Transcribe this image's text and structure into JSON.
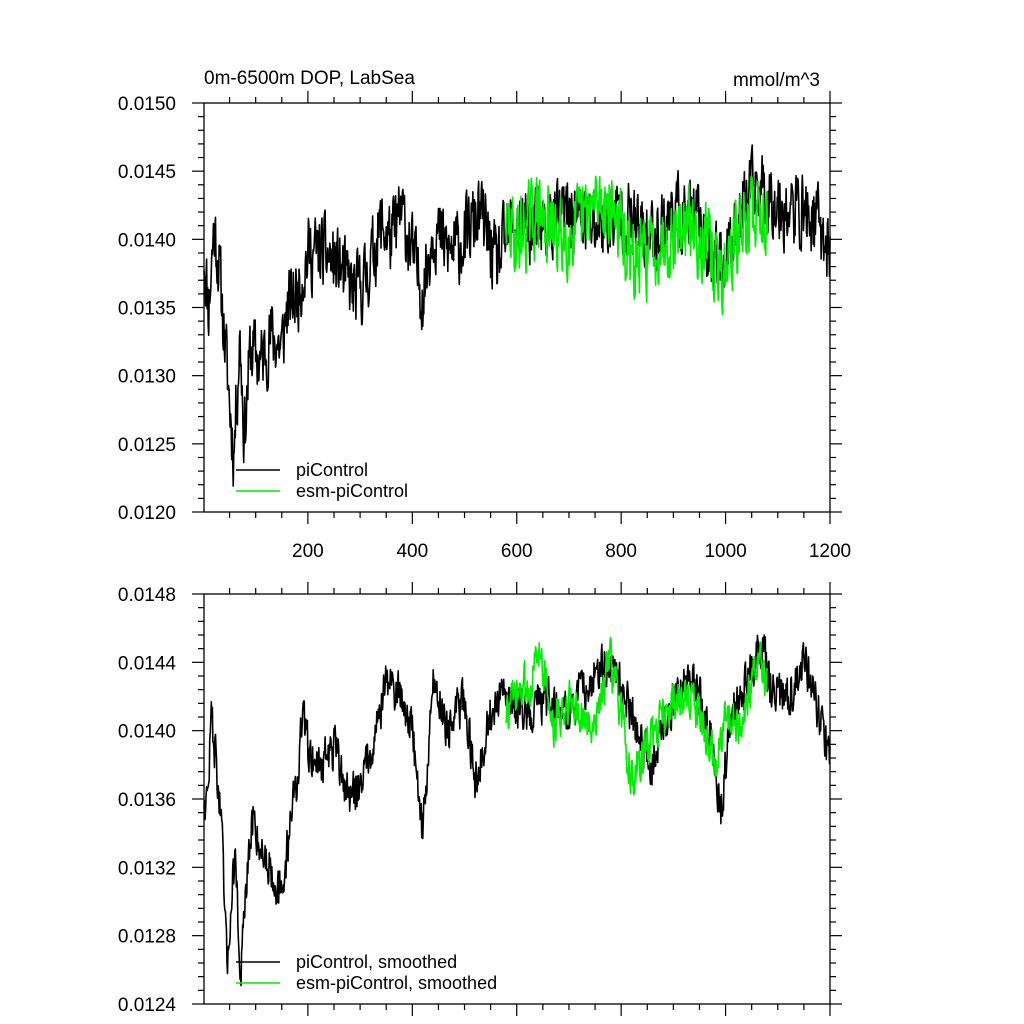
{
  "colors": {
    "piControl": "#000000",
    "esm_piControl": "#00ee00",
    "axis": "#000000",
    "background": "#ffffff"
  },
  "chart_data": [
    {
      "type": "line",
      "panel": "top",
      "title": "0m-6500m DOP, LabSea",
      "units_label": "mmol/m^3",
      "xlim": [
        1,
        1200
      ],
      "ylim": [
        0.012,
        0.015
      ],
      "xticks": [
        200,
        400,
        600,
        800,
        1000,
        1200
      ],
      "xtick_labels": [
        "200",
        "400",
        "600",
        "800",
        "1000",
        "1200"
      ],
      "yticks": [
        0.012,
        0.0125,
        0.013,
        0.0135,
        0.014,
        0.0145,
        0.015
      ],
      "ytick_labels": [
        "0.0120",
        "0.0125",
        "0.0130",
        "0.0135",
        "0.0140",
        "0.0145",
        "0.0150"
      ],
      "grid": false,
      "legend_position": "bottom-left",
      "series": [
        {
          "name": "piControl",
          "color": "#000000",
          "start": 1,
          "end": 1200,
          "anchors": [
            [
              1,
              0.0139
            ],
            [
              10,
              0.0135
            ],
            [
              20,
              0.0141
            ],
            [
              30,
              0.0138
            ],
            [
              50,
              0.0128
            ],
            [
              58,
              0.01243
            ],
            [
              70,
              0.0133
            ],
            [
              78,
              0.01255
            ],
            [
              90,
              0.0132
            ],
            [
              110,
              0.0131
            ],
            [
              130,
              0.0133
            ],
            [
              150,
              0.0132
            ],
            [
              160,
              0.0135
            ],
            [
              180,
              0.0136
            ],
            [
              200,
              0.0139
            ],
            [
              230,
              0.0139
            ],
            [
              260,
              0.0138
            ],
            [
              290,
              0.0136
            ],
            [
              310,
              0.0137
            ],
            [
              340,
              0.0141
            ],
            [
              360,
              0.014
            ],
            [
              380,
              0.0142
            ],
            [
              400,
              0.0139
            ],
            [
              420,
              0.0136
            ],
            [
              440,
              0.0141
            ],
            [
              470,
              0.0139
            ],
            [
              500,
              0.014
            ],
            [
              530,
              0.0142
            ],
            [
              560,
              0.0138
            ],
            [
              590,
              0.0141
            ],
            [
              620,
              0.0141
            ],
            [
              650,
              0.0141
            ],
            [
              700,
              0.0142
            ],
            [
              750,
              0.0141
            ],
            [
              800,
              0.0142
            ],
            [
              850,
              0.014
            ],
            [
              900,
              0.0142
            ],
            [
              950,
              0.0141
            ],
            [
              980,
              0.0138
            ],
            [
              1000,
              0.0139
            ],
            [
              1030,
              0.0142
            ],
            [
              1060,
              0.0144
            ],
            [
              1090,
              0.0143
            ],
            [
              1120,
              0.0142
            ],
            [
              1150,
              0.0142
            ],
            [
              1180,
              0.0141
            ],
            [
              1200,
              0.0139
            ]
          ],
          "noise": 0.00038,
          "seed": 11
        },
        {
          "name": "esm-piControl",
          "color": "#00ee00",
          "start": 580,
          "end": 1080,
          "anchors": [
            [
              580,
              0.0141
            ],
            [
              600,
              0.014
            ],
            [
              640,
              0.0142
            ],
            [
              680,
              0.014
            ],
            [
              720,
              0.0141
            ],
            [
              760,
              0.0143
            ],
            [
              790,
              0.0142
            ],
            [
              820,
              0.0138
            ],
            [
              850,
              0.0139
            ],
            [
              880,
              0.014
            ],
            [
              920,
              0.0141
            ],
            [
              960,
              0.014
            ],
            [
              990,
              0.0137
            ],
            [
              1020,
              0.014
            ],
            [
              1050,
              0.0142
            ],
            [
              1080,
              0.0142
            ]
          ],
          "noise": 0.0004,
          "seed": 29
        }
      ]
    },
    {
      "type": "line",
      "panel": "bottom",
      "title": "",
      "units_label": "",
      "xlim": [
        1,
        1200
      ],
      "ylim": [
        0.0124,
        0.0148
      ],
      "xticks": [
        200,
        400,
        600,
        800,
        1000,
        1200
      ],
      "xtick_labels": [],
      "yticks": [
        0.0124,
        0.0128,
        0.0132,
        0.0136,
        0.014,
        0.0144,
        0.0148
      ],
      "ytick_labels": [
        "0.0124",
        "0.0128",
        "0.0132",
        "0.0136",
        "0.0140",
        "0.0144",
        "0.0148"
      ],
      "grid": false,
      "legend_position": "bottom-left",
      "series": [
        {
          "name": "piControl, smoothed",
          "color": "#000000",
          "start": 1,
          "end": 1200,
          "anchors": [
            [
              1,
              0.0136
            ],
            [
              8,
              0.0136
            ],
            [
              15,
              0.0141
            ],
            [
              25,
              0.0138
            ],
            [
              35,
              0.0134
            ],
            [
              45,
              0.0126
            ],
            [
              55,
              0.0131
            ],
            [
              62,
              0.0133
            ],
            [
              70,
              0.0125
            ],
            [
              80,
              0.013
            ],
            [
              95,
              0.0135
            ],
            [
              110,
              0.0133
            ],
            [
              130,
              0.0132
            ],
            [
              150,
              0.013
            ],
            [
              170,
              0.0136
            ],
            [
              180,
              0.0137
            ],
            [
              190,
              0.0141
            ],
            [
              200,
              0.0139
            ],
            [
              220,
              0.0138
            ],
            [
              250,
              0.0139
            ],
            [
              280,
              0.0136
            ],
            [
              300,
              0.0137
            ],
            [
              330,
              0.014
            ],
            [
              350,
              0.0143
            ],
            [
              380,
              0.0142
            ],
            [
              400,
              0.014
            ],
            [
              420,
              0.0134
            ],
            [
              440,
              0.0143
            ],
            [
              470,
              0.014
            ],
            [
              500,
              0.0142
            ],
            [
              520,
              0.0137
            ],
            [
              550,
              0.0141
            ],
            [
              580,
              0.0142
            ],
            [
              620,
              0.0141
            ],
            [
              660,
              0.0142
            ],
            [
              700,
              0.0141
            ],
            [
              740,
              0.0143
            ],
            [
              780,
              0.0144
            ],
            [
              820,
              0.0141
            ],
            [
              860,
              0.0138
            ],
            [
              900,
              0.0142
            ],
            [
              940,
              0.0143
            ],
            [
              970,
              0.014
            ],
            [
              990,
              0.0135
            ],
            [
              1010,
              0.0141
            ],
            [
              1040,
              0.0143
            ],
            [
              1070,
              0.0145
            ],
            [
              1090,
              0.0142
            ],
            [
              1120,
              0.0142
            ],
            [
              1150,
              0.0144
            ],
            [
              1180,
              0.0141
            ],
            [
              1200,
              0.0138
            ]
          ],
          "noise": 0.00018,
          "seed": 47
        },
        {
          "name": "esm-piControl, smoothed",
          "color": "#00ee00",
          "start": 580,
          "end": 1080,
          "anchors": [
            [
              580,
              0.0141
            ],
            [
              600,
              0.0142
            ],
            [
              630,
              0.0143
            ],
            [
              645,
              0.0145
            ],
            [
              670,
              0.014
            ],
            [
              700,
              0.0142
            ],
            [
              740,
              0.014
            ],
            [
              780,
              0.0144
            ],
            [
              800,
              0.0141
            ],
            [
              820,
              0.0137
            ],
            [
              850,
              0.0139
            ],
            [
              880,
              0.0141
            ],
            [
              920,
              0.0142
            ],
            [
              950,
              0.0141
            ],
            [
              980,
              0.0138
            ],
            [
              1000,
              0.0141
            ],
            [
              1030,
              0.014
            ],
            [
              1060,
              0.0144
            ],
            [
              1080,
              0.0143
            ]
          ],
          "noise": 0.00018,
          "seed": 73
        }
      ]
    }
  ]
}
